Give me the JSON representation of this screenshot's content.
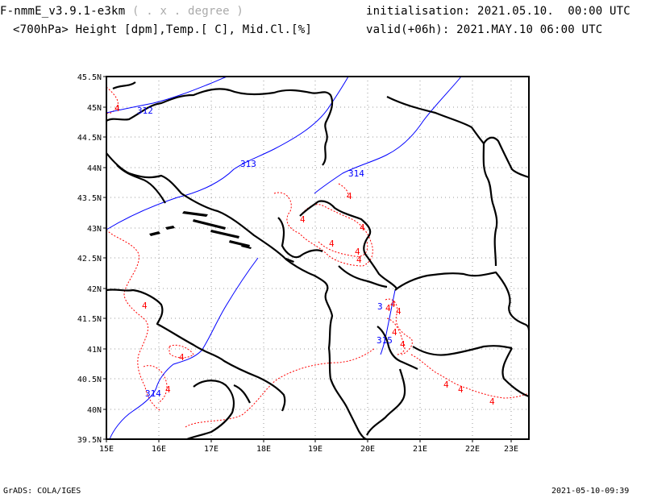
{
  "header": {
    "model_name": "F-nmmE_v3.9.1-e3km",
    "model_grid": "( . x . degree )",
    "variables": "<700hPa> Height [dpm],Temp.[ C], Mid.Cl.[%]",
    "initialisation": "initialisation: 2021.05.10.  00:00 UTC",
    "valid": "valid(+06h): 2021.MAY.10 06:00 UTC"
  },
  "footer": {
    "left": "GrADS: COLA/IGES",
    "right": "2021-05-10-09:39"
  },
  "map": {
    "lon_range": [
      15,
      23.3
    ],
    "lat_range": [
      39.5,
      45.5
    ],
    "lon_ticks": [
      "15E",
      "16E",
      "17E",
      "18E",
      "19E",
      "20E",
      "21E",
      "22E",
      "23E"
    ],
    "lat_ticks": [
      "39.5N",
      "40N",
      "40.5N",
      "41N",
      "41.5N",
      "42N",
      "42.5N",
      "43N",
      "43.5N",
      "44N",
      "44.5N",
      "45N",
      "45.5N"
    ],
    "height_contour_color": "#0000ff",
    "temperature_contour_color": "#ff0000",
    "coastline_color": "#000000",
    "height_labels": [
      "312",
      "313",
      "314",
      "3",
      "315",
      "314"
    ],
    "temperature_labels": [
      "4",
      "4",
      "4",
      "4",
      "4",
      "4",
      "4",
      "4",
      "4",
      "4",
      "4",
      "4",
      "4",
      "4",
      "4",
      "4",
      "4",
      "4"
    ]
  }
}
